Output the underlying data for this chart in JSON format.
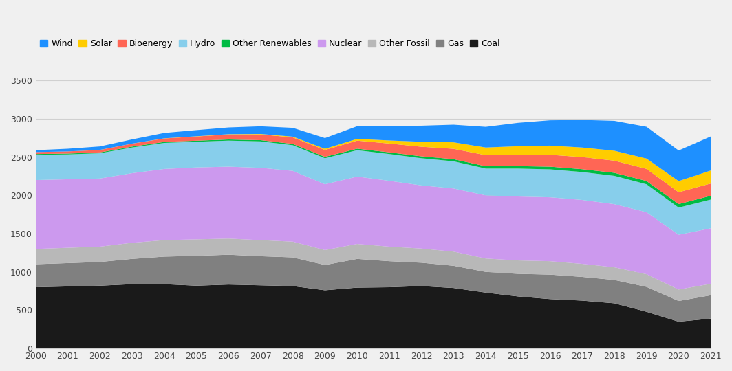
{
  "years": [
    2000,
    2001,
    2002,
    2003,
    2004,
    2005,
    2006,
    2007,
    2008,
    2009,
    2010,
    2011,
    2012,
    2013,
    2014,
    2015,
    2016,
    2017,
    2018,
    2019,
    2020,
    2021
  ],
  "Coal": [
    800,
    810,
    820,
    840,
    840,
    820,
    835,
    825,
    815,
    760,
    795,
    800,
    815,
    790,
    730,
    680,
    645,
    625,
    590,
    480,
    350,
    390
  ],
  "Gas": [
    300,
    305,
    310,
    330,
    360,
    390,
    390,
    380,
    375,
    330,
    375,
    340,
    305,
    290,
    270,
    295,
    320,
    310,
    305,
    325,
    270,
    305
  ],
  "Other Fossil": [
    200,
    200,
    200,
    210,
    215,
    215,
    210,
    210,
    205,
    195,
    195,
    190,
    185,
    185,
    175,
    175,
    175,
    170,
    165,
    165,
    150,
    150
  ],
  "Nuclear": [
    900,
    895,
    890,
    910,
    930,
    940,
    940,
    945,
    925,
    860,
    880,
    860,
    825,
    825,
    825,
    835,
    835,
    835,
    825,
    810,
    715,
    725
  ],
  "Hydro": [
    330,
    325,
    330,
    335,
    340,
    335,
    340,
    345,
    335,
    340,
    345,
    350,
    355,
    355,
    350,
    365,
    365,
    365,
    370,
    365,
    355,
    375
  ],
  "Other Renewables": [
    10,
    11,
    11,
    12,
    13,
    14,
    15,
    16,
    17,
    18,
    20,
    22,
    25,
    28,
    30,
    32,
    35,
    37,
    40,
    43,
    46,
    50
  ],
  "Bioenergy": [
    25,
    28,
    32,
    38,
    45,
    55,
    65,
    75,
    85,
    90,
    105,
    115,
    125,
    135,
    145,
    150,
    155,
    158,
    158,
    158,
    155,
    160
  ],
  "Solar": [
    0,
    0,
    1,
    1,
    2,
    3,
    4,
    6,
    10,
    15,
    23,
    40,
    65,
    85,
    100,
    110,
    120,
    125,
    130,
    135,
    145,
    170
  ],
  "Wind": [
    25,
    35,
    45,
    55,
    70,
    80,
    88,
    100,
    115,
    140,
    165,
    190,
    210,
    230,
    270,
    305,
    330,
    360,
    390,
    415,
    400,
    445
  ],
  "colors": {
    "Coal": "#1a1a1a",
    "Gas": "#808080",
    "Other Fossil": "#b8b8b8",
    "Nuclear": "#cc99ee",
    "Hydro": "#87ceeb",
    "Other Renewables": "#00bb44",
    "Bioenergy": "#ff6655",
    "Solar": "#ffcc00",
    "Wind": "#1e90ff"
  },
  "legend_order": [
    "Wind",
    "Solar",
    "Bioenergy",
    "Hydro",
    "Other Renewables",
    "Nuclear",
    "Other Fossil",
    "Gas",
    "Coal"
  ],
  "stack_order": [
    "Coal",
    "Gas",
    "Other Fossil",
    "Nuclear",
    "Hydro",
    "Other Renewables",
    "Bioenergy",
    "Solar",
    "Wind"
  ],
  "ylim": [
    0,
    3500
  ],
  "yticks": [
    0,
    500,
    1000,
    1500,
    2000,
    2500,
    3000,
    3500
  ],
  "background_color": "#f0f0f0",
  "grid_color": "#d0d0d0"
}
